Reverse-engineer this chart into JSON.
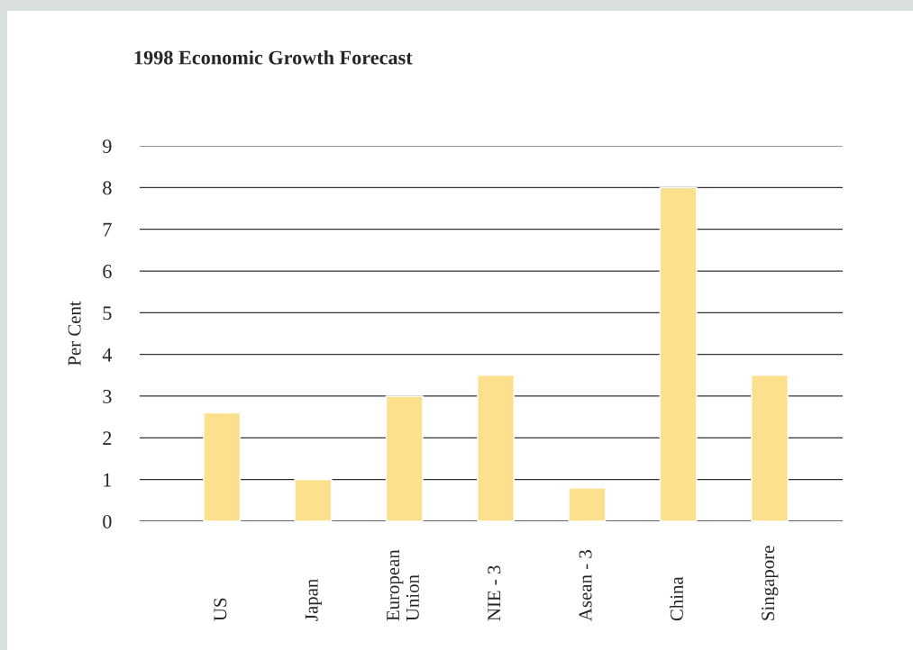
{
  "chart_data": {
    "type": "bar",
    "title": "1998 Economic Growth Forecast",
    "ylabel": "Per Cent",
    "categories": [
      "US",
      "Japan",
      "European\nUnion",
      "NIE - 3",
      "Asean - 3",
      "China",
      "Singapore"
    ],
    "values": [
      2.6,
      1.0,
      3.0,
      3.5,
      0.8,
      8.0,
      3.5
    ],
    "color": "#fde08e",
    "ylim": [
      0,
      9
    ],
    "yticks": [
      0,
      1,
      2,
      3,
      4,
      5,
      6,
      7,
      8,
      9
    ],
    "grid": "y"
  }
}
